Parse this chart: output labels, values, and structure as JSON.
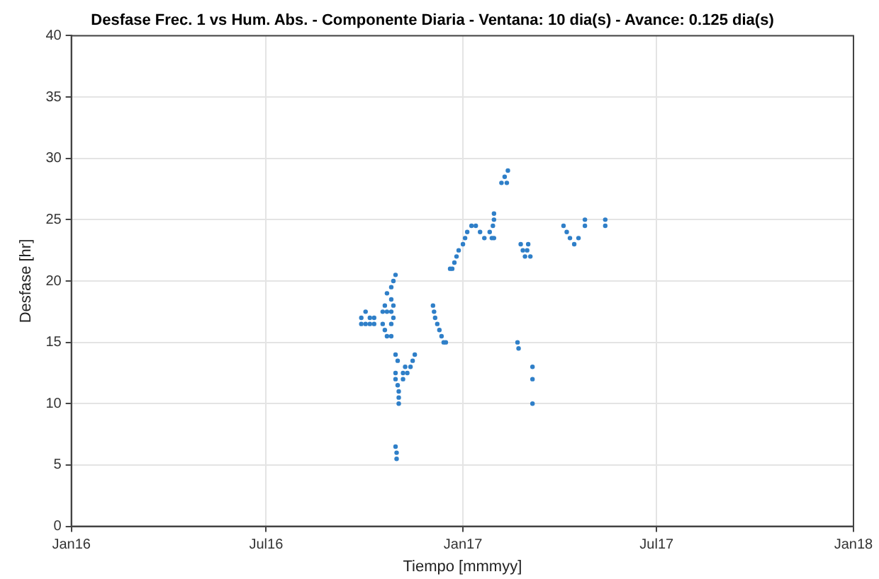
{
  "chart_data": {
    "type": "scatter",
    "title": "Desfase Frec. 1 vs Hum. Abs. - Componente Diaria - Ventana: 10 dia(s) - Avance: 0.125 dia(s)",
    "xlabel": "Tiempo [mmmyy]",
    "ylabel": "Desfase [hr]",
    "xlim": [
      "2016-01-01",
      "2018-01-01"
    ],
    "xticks": [
      {
        "value": "2016-01-01",
        "label": "Jan16"
      },
      {
        "value": "2016-07-01",
        "label": "Jul16"
      },
      {
        "value": "2017-01-01",
        "label": "Jan17"
      },
      {
        "value": "2017-07-01",
        "label": "Jul17"
      },
      {
        "value": "2018-01-01",
        "label": "Jan18"
      }
    ],
    "ylim": [
      0,
      40
    ],
    "yticks": [
      0,
      5,
      10,
      15,
      20,
      25,
      30,
      35,
      40
    ],
    "grid": true,
    "legend": false,
    "marker": "circle",
    "series": [
      {
        "color": "#2f7fc8",
        "x": [
          "2016-09-28",
          "2016-09-28",
          "2016-10-02",
          "2016-10-02",
          "2016-10-06",
          "2016-10-06",
          "2016-10-10",
          "2016-10-10",
          "2016-10-18",
          "2016-10-18",
          "2016-10-20",
          "2016-10-20",
          "2016-10-22",
          "2016-10-22",
          "2016-10-22",
          "2016-10-26",
          "2016-10-26",
          "2016-10-26",
          "2016-10-26",
          "2016-10-26",
          "2016-10-28",
          "2016-10-28",
          "2016-10-28",
          "2016-10-30",
          "2016-10-30",
          "2016-10-30",
          "2016-10-30",
          "2016-10-31",
          "2016-10-31",
          "2016-11-01",
          "2016-11-01",
          "2016-11-02",
          "2016-11-02",
          "2016-11-02",
          "2016-10-30",
          "2016-11-06",
          "2016-11-06",
          "2016-11-08",
          "2016-11-10",
          "2016-11-13",
          "2016-11-15",
          "2016-11-17",
          "2016-12-04",
          "2016-12-05",
          "2016-12-06",
          "2016-12-08",
          "2016-12-10",
          "2016-12-12",
          "2016-12-14",
          "2016-12-16",
          "2016-12-20",
          "2016-12-22",
          "2016-12-24",
          "2016-12-26",
          "2016-12-28",
          "2017-01-01",
          "2017-01-03",
          "2017-01-05",
          "2017-01-09",
          "2017-01-13",
          "2017-01-17",
          "2017-01-21",
          "2017-01-26",
          "2017-01-28",
          "2017-01-29",
          "2017-01-30",
          "2017-01-30",
          "2017-01-30",
          "2017-02-06",
          "2017-02-09",
          "2017-02-11",
          "2017-02-12",
          "2017-02-21",
          "2017-02-22",
          "2017-02-24",
          "2017-02-26",
          "2017-02-28",
          "2017-03-02",
          "2017-03-03",
          "2017-03-05",
          "2017-03-07",
          "2017-03-07",
          "2017-03-07",
          "2017-04-05",
          "2017-04-08",
          "2017-04-11",
          "2017-04-15",
          "2017-04-19",
          "2017-04-25",
          "2017-04-25",
          "2017-05-14",
          "2017-05-14"
        ],
        "values": [
          17,
          16.5,
          17.5,
          16.5,
          17,
          16.5,
          17,
          16.5,
          17.5,
          16.5,
          18,
          16,
          19,
          17.5,
          15.5,
          19.5,
          18.5,
          17.5,
          16.5,
          15.5,
          20,
          18,
          17,
          14,
          12.5,
          12,
          6.5,
          6,
          5.5,
          13.5,
          11.5,
          11,
          10.5,
          10,
          20.5,
          12.5,
          12,
          13,
          12.5,
          13,
          13.5,
          14,
          18,
          17.5,
          17,
          16.5,
          16,
          15.5,
          15,
          15,
          21,
          21,
          21.5,
          22,
          22.5,
          23,
          23.5,
          24,
          24.5,
          24.5,
          24,
          23.5,
          24,
          23.5,
          24.5,
          25,
          25.5,
          23.5,
          28,
          28.5,
          28,
          29,
          15,
          14.5,
          23,
          22.5,
          22,
          22.5,
          23,
          22,
          13,
          12,
          10,
          24.5,
          24,
          23.5,
          23,
          23.5,
          25,
          24.5,
          25,
          24.5
        ]
      }
    ]
  }
}
